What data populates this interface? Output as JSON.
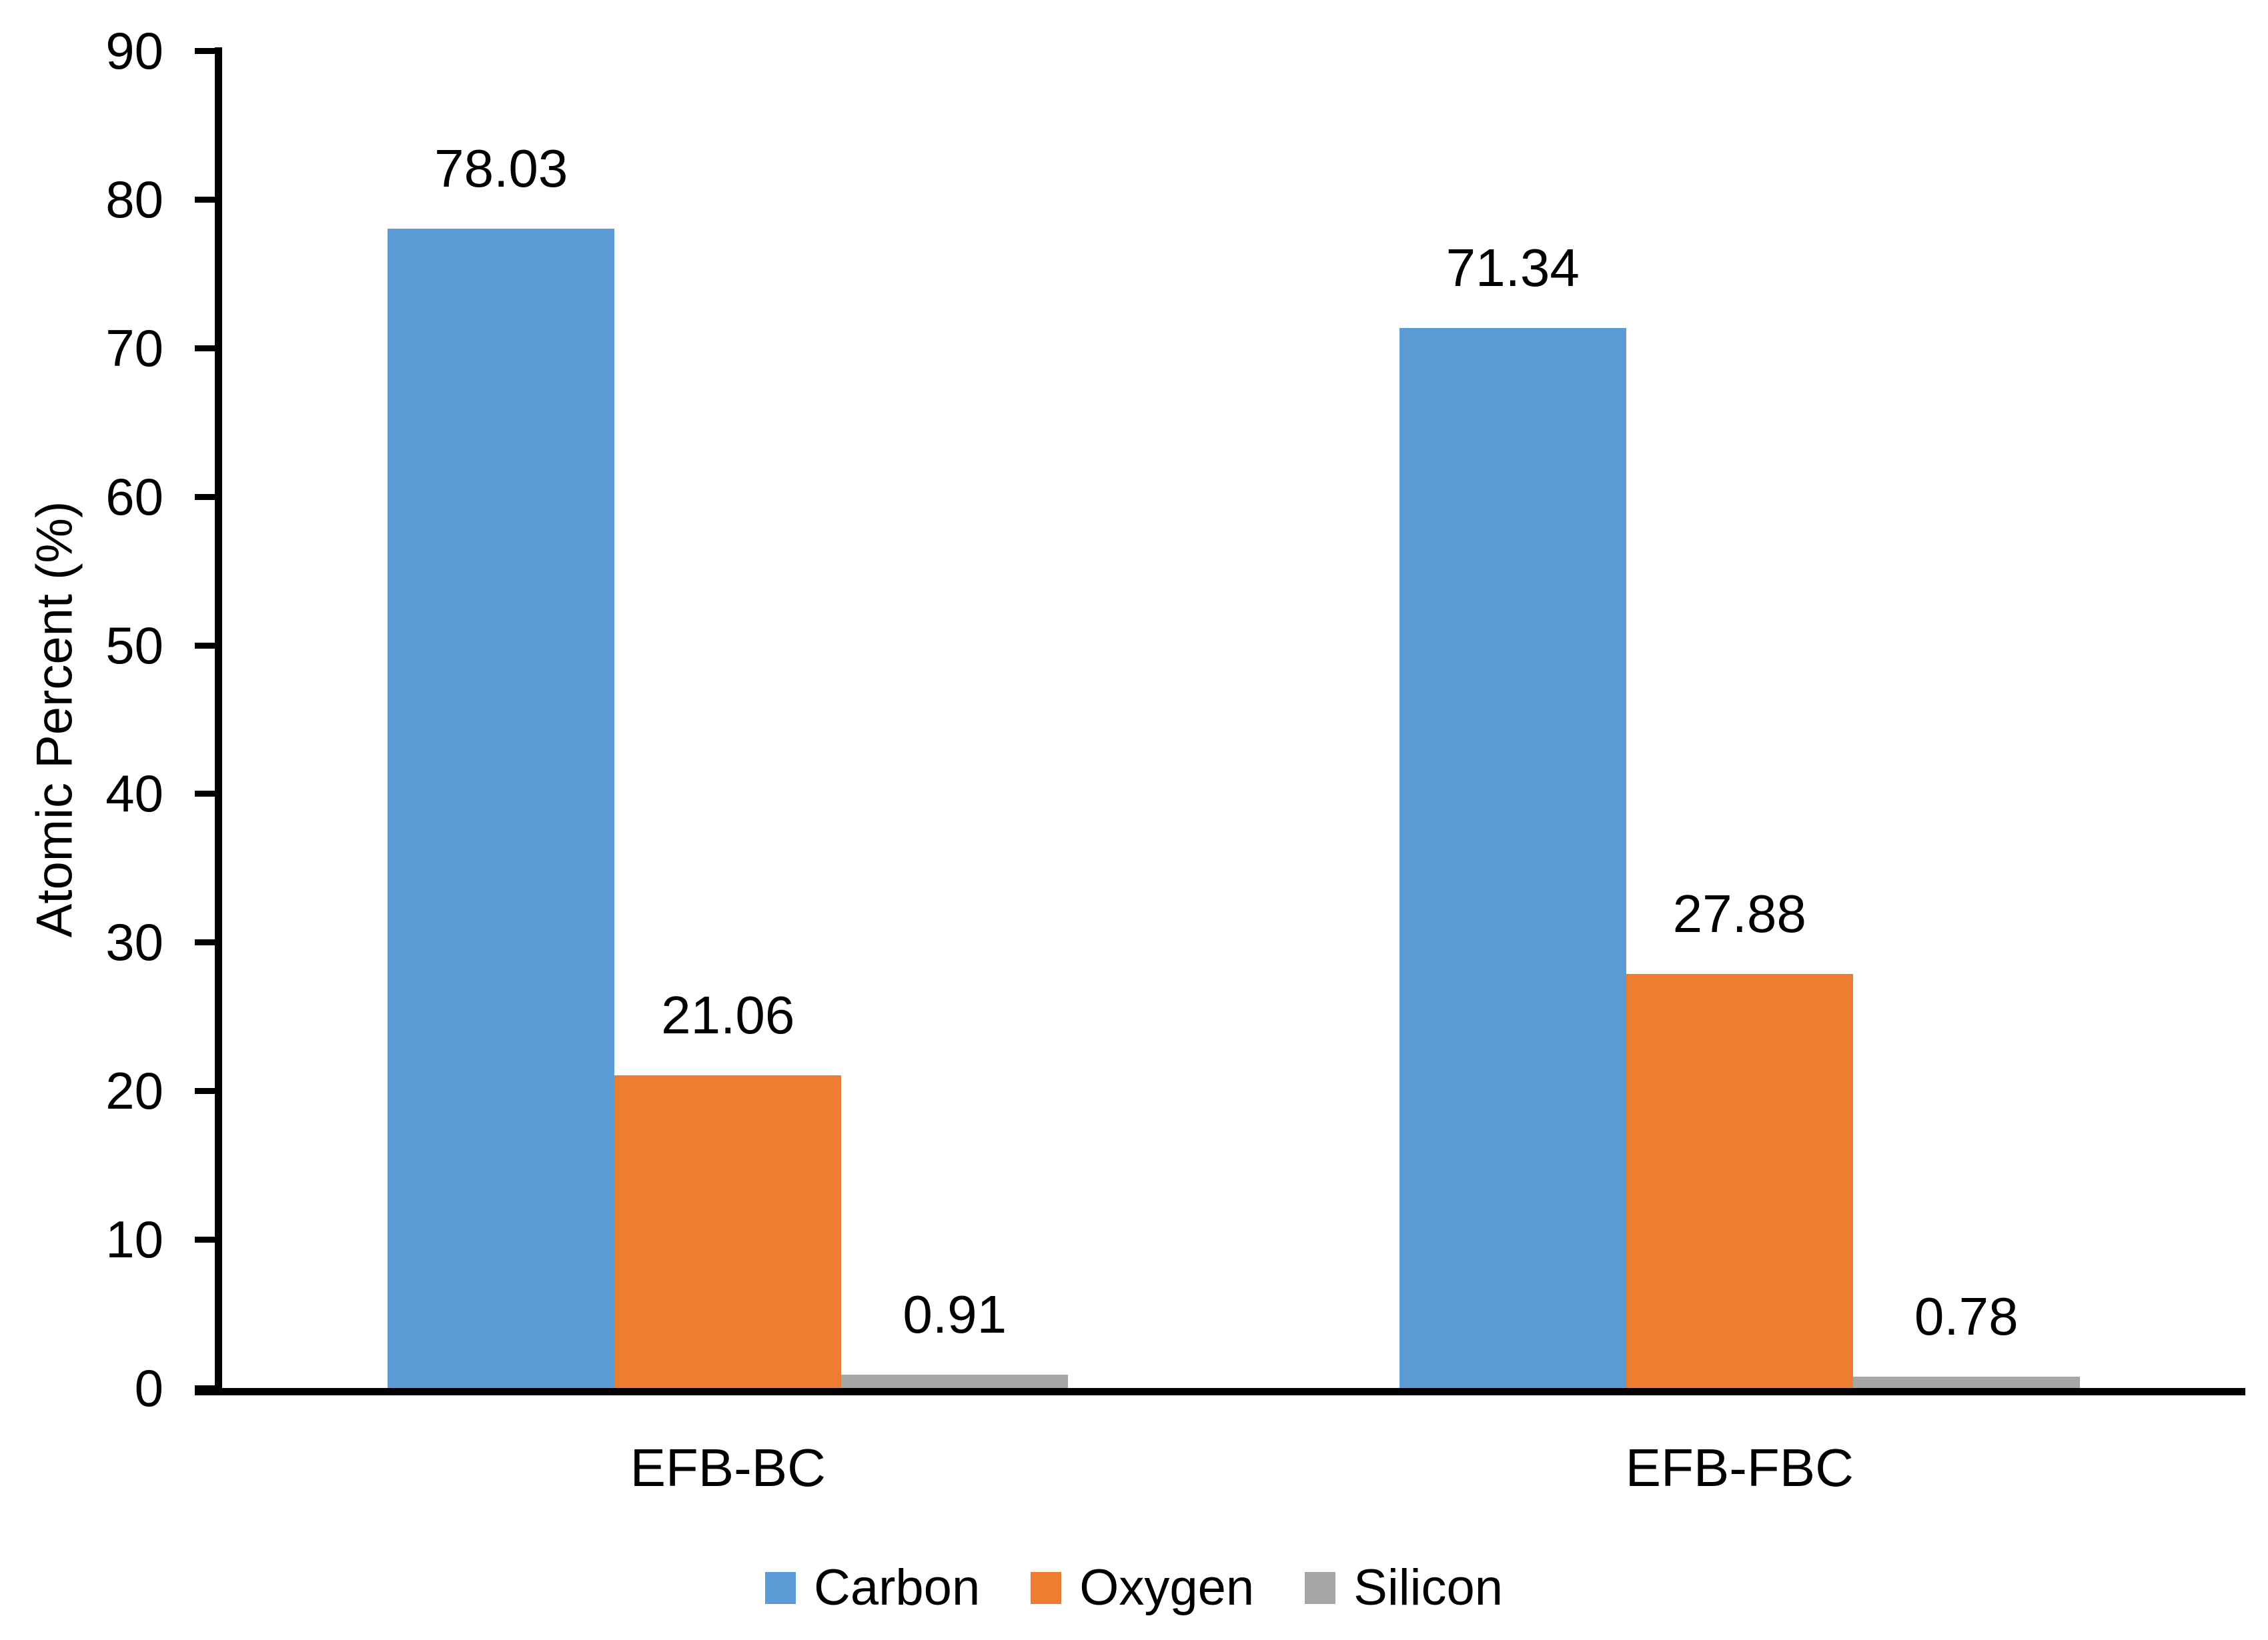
{
  "chart_data": {
    "type": "bar",
    "title": "",
    "ylabel": "Atomic Percent (%)",
    "xlabel": "",
    "categories": [
      "EFB-BC",
      "EFB-FBC"
    ],
    "series": [
      {
        "name": "Carbon",
        "color": "#5B9BD5",
        "textured": false,
        "values": [
          78.03,
          71.34
        ],
        "labels": [
          "78.03",
          "71.34"
        ]
      },
      {
        "name": "Oxygen",
        "color": "#ED7D31",
        "textured": false,
        "values": [
          21.06,
          27.88
        ],
        "labels": [
          "21.06",
          "27.88"
        ]
      },
      {
        "name": "Silicon",
        "color": "#A6A6A6",
        "textured": true,
        "values": [
          0.91,
          0.78
        ],
        "labels": [
          "0.91",
          "0.78"
        ]
      }
    ],
    "ylim": [
      0,
      90
    ],
    "ytick_step": 10,
    "ytick_labels": [
      "0",
      "10",
      "20",
      "30",
      "40",
      "50",
      "60",
      "70",
      "80",
      "90"
    ],
    "grid": false,
    "legend_position": "bottom",
    "axis_color": "#000000",
    "text_color": "#000000",
    "background_color": "#FFFFFF"
  }
}
